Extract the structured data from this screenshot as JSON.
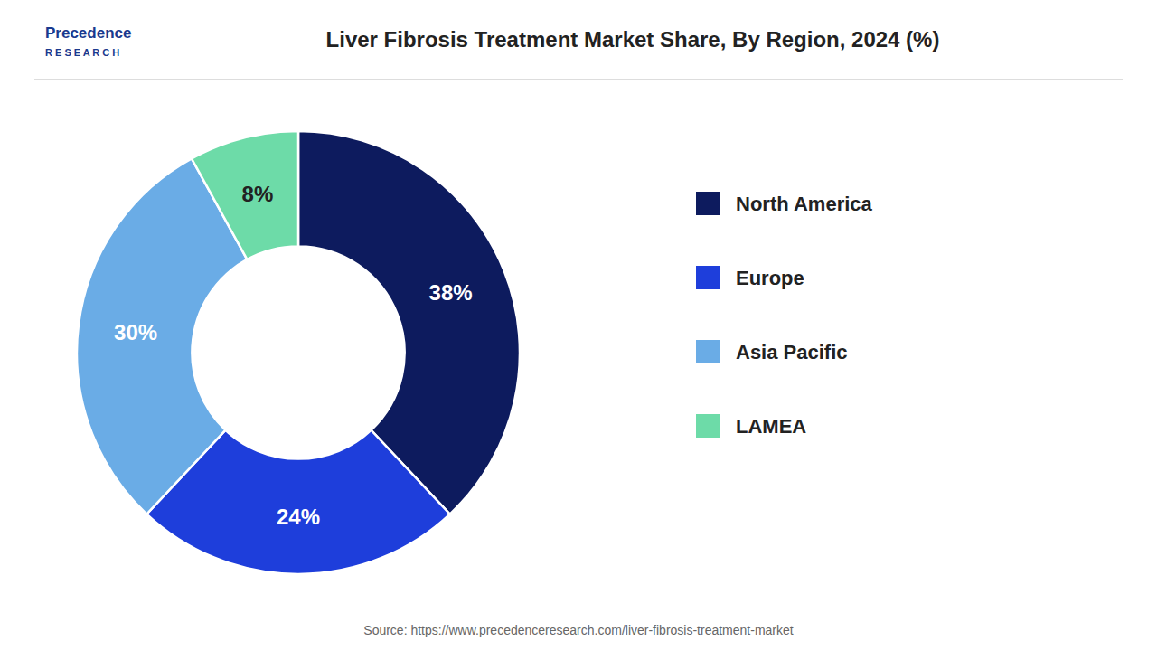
{
  "chart_data": {
    "type": "donut",
    "title": "Liver Fibrosis Treatment Market Share, By Region, 2024 (%)",
    "categories": [
      "North America",
      "Europe",
      "Asia Pacific",
      "LAMEA"
    ],
    "values": [
      38,
      24,
      30,
      8
    ],
    "value_labels": [
      "38%",
      "24%",
      "30%",
      "8%"
    ],
    "colors": [
      "#0d1b5e",
      "#1e3edb",
      "#6aace6",
      "#6ddba8"
    ],
    "data_labels": true,
    "legend": "right",
    "annotations": [
      "Precedence",
      "R E S E A R C H",
      "Source: https://www.precedenceresearch.com/liver-fibrosis-treatment-market"
    ]
  }
}
